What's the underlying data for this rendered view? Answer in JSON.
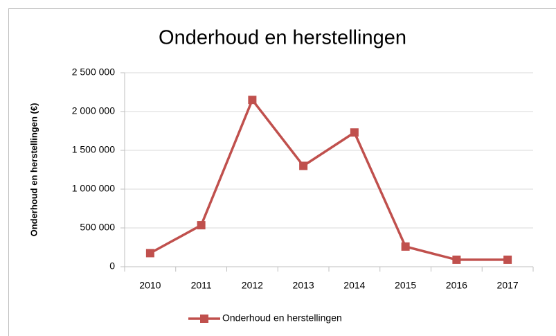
{
  "chart_data": {
    "type": "line",
    "title": "Onderhoud en herstellingen",
    "y_label": "Onderhoud en herstellingen  (€)",
    "categories": [
      "2010",
      "2011",
      "2012",
      "2013",
      "2014",
      "2015",
      "2016",
      "2017"
    ],
    "series": [
      {
        "name": "Onderhoud en herstellingen",
        "color": "#c0504d",
        "values": [
          175000,
          535000,
          2150000,
          1300000,
          1730000,
          260000,
          90000,
          90000
        ]
      }
    ],
    "ylim": [
      0,
      2500000
    ],
    "yticks": [
      0,
      {
        "value": 500000,
        "label": "500 000"
      },
      {
        "value": 1000000,
        "label": "1 000 000"
      },
      {
        "value": 1500000,
        "label": "1 500 000"
      },
      {
        "value": 2000000,
        "label": "2 000 000"
      },
      {
        "value": 2500000,
        "label": "2 500 000"
      }
    ],
    "grid": true,
    "legend": "bottom"
  }
}
